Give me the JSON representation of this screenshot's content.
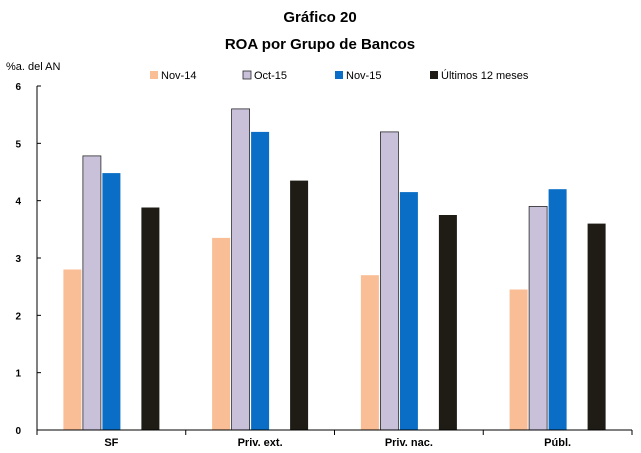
{
  "chart_data": {
    "type": "bar",
    "title": "Gráfico 20",
    "subtitle": "ROA por Grupo de Bancos",
    "ylabel": "%a. del AN",
    "xlabel": "",
    "ylim": [
      0,
      6
    ],
    "yticks": [
      0,
      1,
      2,
      3,
      4,
      5,
      6
    ],
    "grid": false,
    "legend_position": "top",
    "categories": [
      "SF",
      "Priv. ext.",
      "Priv. nac.",
      "Públ."
    ],
    "series": [
      {
        "name": "Nov-14",
        "color": "#F9BE95",
        "values": [
          2.8,
          3.35,
          2.7,
          2.45
        ]
      },
      {
        "name": "Oct-15",
        "color": "#C9C0DA",
        "values": [
          4.78,
          5.6,
          5.2,
          3.9
        ]
      },
      {
        "name": "Nov-15",
        "color": "#0A6EC6",
        "values": [
          4.48,
          5.2,
          4.15,
          4.2
        ]
      },
      {
        "name": "Últimos 12 meses",
        "color": "#1E1C14",
        "values": [
          3.88,
          4.35,
          3.75,
          3.6
        ]
      }
    ]
  }
}
